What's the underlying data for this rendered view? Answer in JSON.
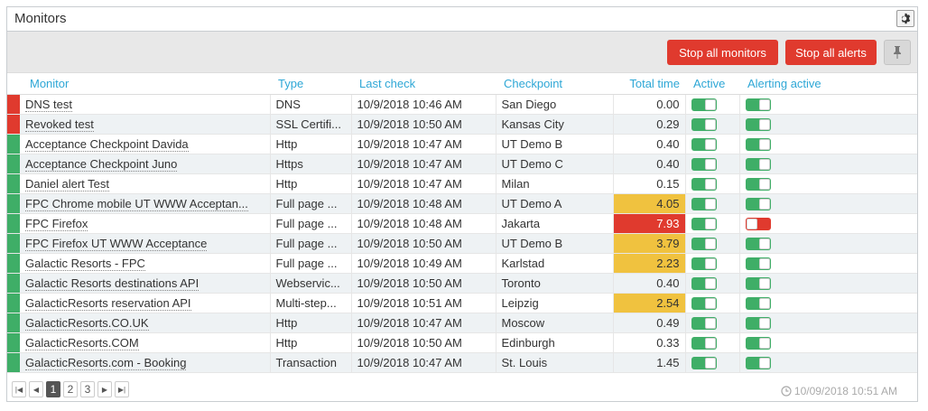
{
  "header": {
    "title": "Monitors",
    "settings_icon": "gear-icon"
  },
  "toolbar": {
    "stop_monitors_label": "Stop all monitors",
    "stop_alerts_label": "Stop all alerts",
    "pin_icon": "pin-icon"
  },
  "colors": {
    "ok": "#3fae67",
    "error": "#e03a2e",
    "warning": "#f0c23f",
    "header_text": "#2ea7d6"
  },
  "table": {
    "columns": [
      "Monitor",
      "Type",
      "Last check",
      "Checkpoint",
      "Total time",
      "Active",
      "Alerting active"
    ],
    "rows": [
      {
        "status": "error",
        "monitor": "DNS test",
        "type": "DNS",
        "last_check": "10/9/2018 10:46 AM",
        "checkpoint": "San Diego",
        "total_time": "0.00",
        "time_level": "",
        "active": true,
        "alerting": true
      },
      {
        "status": "error",
        "monitor": "Revoked test",
        "type": "SSL Certifi...",
        "last_check": "10/9/2018 10:50 AM",
        "checkpoint": "Kansas City",
        "total_time": "0.29",
        "time_level": "",
        "active": true,
        "alerting": true
      },
      {
        "status": "ok",
        "monitor": "Acceptance Checkpoint Davida",
        "type": "Http",
        "last_check": "10/9/2018 10:47 AM",
        "checkpoint": "UT Demo B",
        "total_time": "0.40",
        "time_level": "",
        "active": true,
        "alerting": true
      },
      {
        "status": "ok",
        "monitor": "Acceptance Checkpoint Juno",
        "type": "Https",
        "last_check": "10/9/2018 10:47 AM",
        "checkpoint": "UT Demo C",
        "total_time": "0.40",
        "time_level": "",
        "active": true,
        "alerting": true
      },
      {
        "status": "ok",
        "monitor": "Daniel alert Test",
        "type": "Http",
        "last_check": "10/9/2018 10:47 AM",
        "checkpoint": "Milan",
        "total_time": "0.15",
        "time_level": "",
        "active": true,
        "alerting": true
      },
      {
        "status": "ok",
        "monitor": "FPC Chrome mobile UT WWW Acceptan...",
        "type": "Full page ...",
        "last_check": "10/9/2018 10:48 AM",
        "checkpoint": "UT Demo A",
        "total_time": "4.05",
        "time_level": "warn",
        "active": true,
        "alerting": true
      },
      {
        "status": "ok",
        "monitor": "FPC Firefox",
        "type": "Full page ...",
        "last_check": "10/9/2018 10:48 AM",
        "checkpoint": "Jakarta",
        "total_time": "7.93",
        "time_level": "crit",
        "active": true,
        "alerting": false
      },
      {
        "status": "ok",
        "monitor": "FPC Firefox UT WWW Acceptance",
        "type": "Full page ...",
        "last_check": "10/9/2018 10:50 AM",
        "checkpoint": "UT Demo B",
        "total_time": "3.79",
        "time_level": "warn",
        "active": true,
        "alerting": true
      },
      {
        "status": "ok",
        "monitor": "Galactic Resorts - FPC",
        "type": "Full page ...",
        "last_check": "10/9/2018 10:49 AM",
        "checkpoint": "Karlstad",
        "total_time": "2.23",
        "time_level": "warn",
        "active": true,
        "alerting": true
      },
      {
        "status": "ok",
        "monitor": "Galactic Resorts destinations API",
        "type": "Webservic...",
        "last_check": "10/9/2018 10:50 AM",
        "checkpoint": "Toronto",
        "total_time": "0.40",
        "time_level": "",
        "active": true,
        "alerting": true
      },
      {
        "status": "ok",
        "monitor": "GalacticResorts reservation API",
        "type": "Multi-step...",
        "last_check": "10/9/2018 10:51 AM",
        "checkpoint": "Leipzig",
        "total_time": "2.54",
        "time_level": "warn",
        "active": true,
        "alerting": true
      },
      {
        "status": "ok",
        "monitor": "GalacticResorts.CO.UK",
        "type": "Http",
        "last_check": "10/9/2018 10:47 AM",
        "checkpoint": "Moscow",
        "total_time": "0.49",
        "time_level": "",
        "active": true,
        "alerting": true
      },
      {
        "status": "ok",
        "monitor": "GalacticResorts.COM",
        "type": "Http",
        "last_check": "10/9/2018 10:50 AM",
        "checkpoint": "Edinburgh",
        "total_time": "0.33",
        "time_level": "",
        "active": true,
        "alerting": true
      },
      {
        "status": "ok",
        "monitor": "GalacticResorts.com - Booking",
        "type": "Transaction",
        "last_check": "10/9/2018 10:47 AM",
        "checkpoint": "St. Louis",
        "total_time": "1.45",
        "time_level": "",
        "active": true,
        "alerting": true
      }
    ]
  },
  "pagination": {
    "pages": [
      "1",
      "2",
      "3"
    ],
    "current": "1"
  },
  "footer": {
    "timestamp": "10/09/2018 10:51 AM",
    "clock_icon": "clock-icon"
  }
}
